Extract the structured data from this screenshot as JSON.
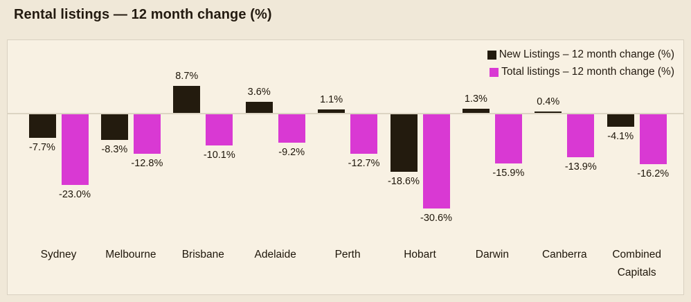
{
  "title": "Rental listings — 12 month change (%)",
  "chart_data": {
    "type": "bar",
    "title": "Rental listings — 12 month change (%)",
    "categories": [
      "Sydney",
      "Melbourne",
      "Brisbane",
      "Adelaide",
      "Perth",
      "Hobart",
      "Darwin",
      "Canberra",
      "Combined Capitals"
    ],
    "series": [
      {
        "name": "New Listings – 12 month change (%)",
        "color": "#231b0e",
        "values": [
          -7.7,
          -8.3,
          8.7,
          3.6,
          1.1,
          -18.6,
          1.3,
          0.4,
          -4.1
        ]
      },
      {
        "name": "Total listings – 12 month change (%)",
        "color": "#d939d3",
        "values": [
          -23.0,
          -12.8,
          -10.1,
          -9.2,
          -12.7,
          -30.6,
          -15.9,
          -13.9,
          -16.2
        ]
      }
    ],
    "value_suffix": "%",
    "data_labels": true,
    "grid": false,
    "legend_position": "top-right",
    "baseline": 0,
    "xlabel": "",
    "ylabel": ""
  },
  "colors": {
    "page_background": "#f0e8d8",
    "panel_background": "#f8f1e3",
    "panel_border": "#d9d1c1",
    "axis_line": "#dcd4c3",
    "text": "#1e160a"
  }
}
